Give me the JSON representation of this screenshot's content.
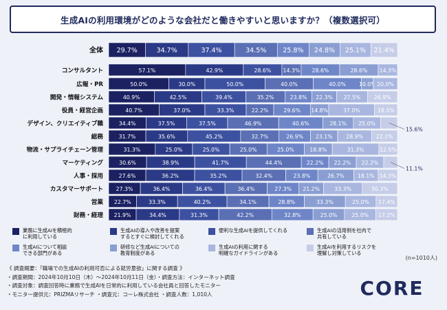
{
  "title": "生成AIの利用環境がどのような会社だと働きやすいと思いますか？（複数選択可）",
  "sample_note": "(n=1010人)",
  "footnote": {
    "lines": [
      "《 調査概要：「職場での生成AIの利用可否による就労意欲」に関する調査 》",
      "・調査期間：2024年10月10日（木）～2024年10月11日（金）・調査方法：インターネット調査",
      "・調査対象：調査回答時に業務で生成AIを日常的に利用している会社員と回答したモニター",
      "・モニター提供元：PRIZMAリサーチ ・調査元：コーレ株式会社 ・調査人数：1,010人"
    ]
  },
  "logo_text": "CORE",
  "colors": {
    "series": [
      "#1b2161",
      "#2b3a86",
      "#3d51a1",
      "#5a6fb4",
      "#6e86c8",
      "#8a9ed2",
      "#a9b6df",
      "#c6cde8"
    ],
    "label_dark_bg": "#ffffff",
    "title_border": "#1f2a5c"
  },
  "chart_data": {
    "type": "bar",
    "stacked": true,
    "orientation": "horizontal",
    "categories": [
      "全体",
      "コンサルタント",
      "広報・PR",
      "開発・情報システム",
      "役員・経営企画",
      "デザイン、クリエイティブ職",
      "総務",
      "物流・サプライチェーン管理",
      "マーケティング",
      "人事・採用",
      "カスタマーサポート",
      "営業",
      "財務・経理"
    ],
    "series": [
      {
        "name": "業務に生成AIを積極的に利用している",
        "values": [
          29.7,
          57.1,
          50.0,
          40.9,
          40.7,
          34.4,
          31.7,
          31.3,
          30.6,
          27.6,
          27.3,
          22.7,
          21.9
        ]
      },
      {
        "name": "生成AIの導入や改善を提案するとすぐに検討してくれる",
        "values": [
          34.7,
          42.9,
          30.0,
          42.5,
          37.0,
          37.5,
          35.6,
          25.0,
          38.9,
          36.2,
          36.4,
          33.3,
          34.4
        ]
      },
      {
        "name": "便利な生成AIを提供してくれる",
        "values": [
          37.4,
          28.6,
          50.0,
          39.4,
          33.3,
          37.5,
          45.2,
          25.0,
          41.7,
          35.2,
          36.4,
          40.2,
          31.3
        ]
      },
      {
        "name": "生成AIの活用例を社内で共有している",
        "values": [
          34.5,
          14.3,
          40.0,
          35.2,
          22.2,
          46.9,
          32.7,
          25.0,
          44.4,
          32.4,
          36.4,
          34.1,
          42.2
        ]
      },
      {
        "name": "生成AIについて相談できる部門がある",
        "values": [
          25.8,
          28.6,
          40.0,
          23.8,
          29.6,
          40.6,
          26.9,
          25.0,
          22.2,
          23.8,
          27.3,
          28.8,
          32.8
        ]
      },
      {
        "name": "研修など生成AIについての教育制度がある",
        "values": [
          24.8,
          28.6,
          10.0,
          22.3,
          14.8,
          28.1,
          23.1,
          18.8,
          22.2,
          26.7,
          21.2,
          33.3,
          25.0
        ]
      },
      {
        "name": "生成AIの利用に関する明確なガイドラインがある",
        "values": [
          25.1,
          14.3,
          20.0,
          27.5,
          37.0,
          25.0,
          28.9,
          31.3,
          22.2,
          18.1,
          33.3,
          25.0,
          25.0
        ]
      },
      {
        "name": "生成AIを利用するリスクを理解し対策している",
        "values": [
          21.4,
          null,
          null,
          26.9,
          18.5,
          15.6,
          22.1,
          12.5,
          11.1,
          14.3,
          30.3,
          17.4,
          17.2
        ]
      }
    ],
    "callouts": [
      {
        "category": "デザイン、クリエイティブ職",
        "series": 7,
        "text": "15.6%"
      },
      {
        "category": "マーケティング",
        "series": 7,
        "text": "11.1%"
      }
    ]
  }
}
